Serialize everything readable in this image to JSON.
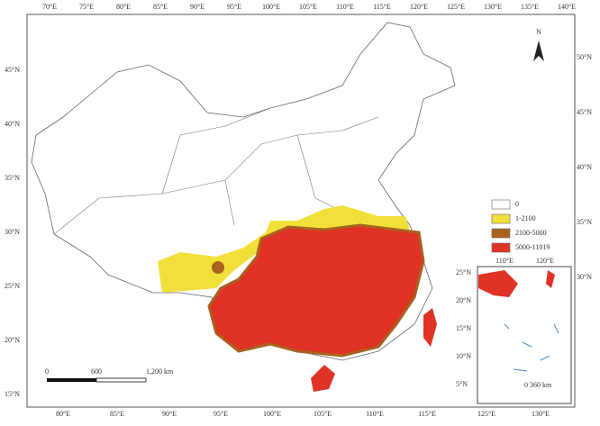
{
  "map": {
    "top_ticks": [
      "70°E",
      "75°E",
      "80°E",
      "85°E",
      "90°E",
      "95°E",
      "100°E",
      "105°E",
      "110°E",
      "115°E",
      "120°E",
      "125°E",
      "130°E",
      "135°E",
      "140°E"
    ],
    "bottom_ticks": [
      "80°E",
      "85°E",
      "90°E",
      "95°E",
      "100°E",
      "105°E",
      "110°E",
      "115°E",
      "125°E",
      "130°E"
    ],
    "left_ticks": [
      "45°N",
      "40°N",
      "35°N",
      "30°N",
      "25°N",
      "20°N",
      "15°N"
    ],
    "right_ticks": [
      "50°N",
      "45°N",
      "40°N",
      "35°N",
      "30°N"
    ],
    "north": "N",
    "legend": [
      {
        "label": "0",
        "color": "#ffffff"
      },
      {
        "label": "1-2100",
        "color": "#f2e03a"
      },
      {
        "label": "2100-5000",
        "color": "#a8621e"
      },
      {
        "label": "5000-11019",
        "color": "#e03225"
      }
    ],
    "scale": [
      "0",
      "600",
      "1,200 km"
    ],
    "inset": {
      "top_ticks": [
        "110°E",
        "120°E"
      ],
      "left_ticks": [
        "25°N",
        "20°N",
        "15°N",
        "10°N",
        "5°N"
      ],
      "scale": "0  360 km"
    }
  }
}
